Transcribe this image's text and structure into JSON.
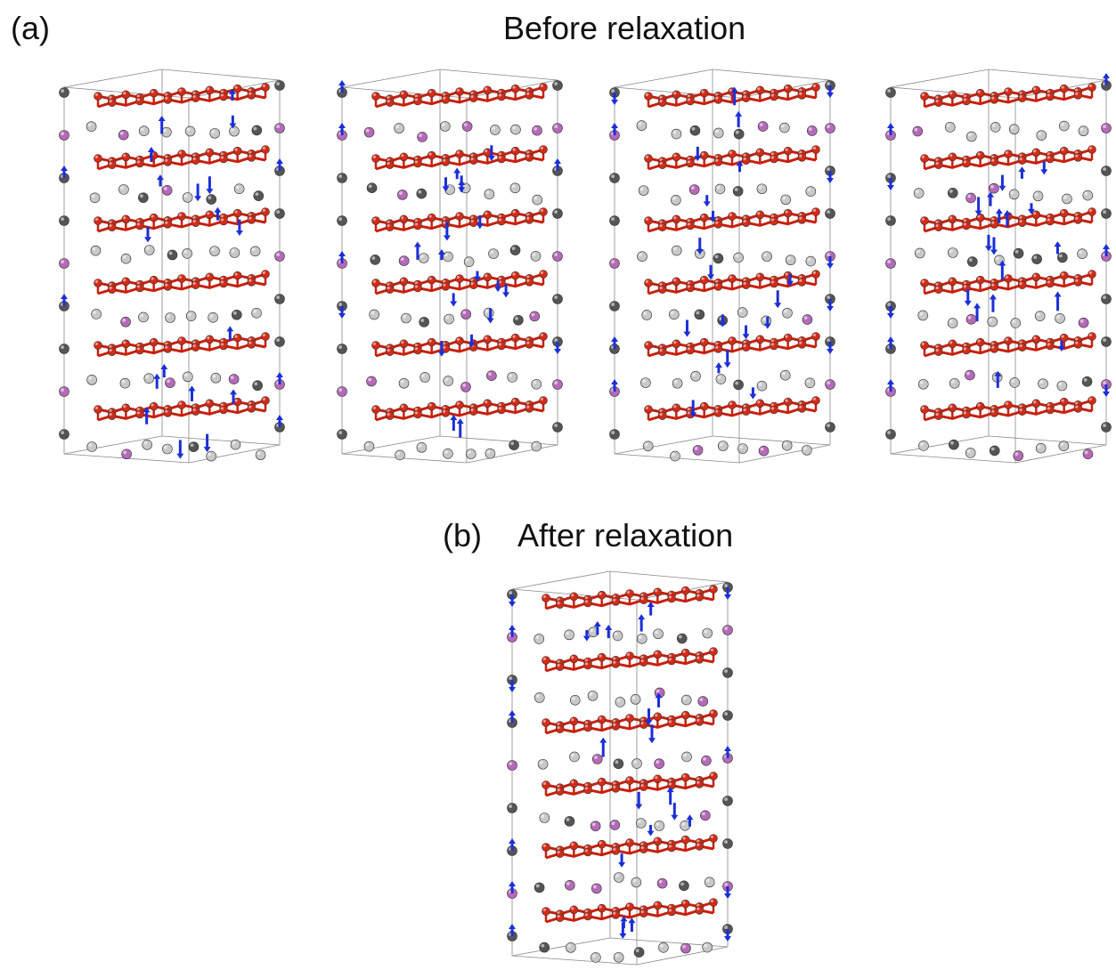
{
  "panel_a": {
    "label": "(a)",
    "title": "Before relaxation",
    "structure_count": 4
  },
  "panel_b": {
    "label": "(b)",
    "title": "After relaxation",
    "structure_count": 1
  },
  "atom_colors": {
    "layer_atom": "#d42a17",
    "layer_bond": "#c8200e",
    "dark_atom": "#555555",
    "light_atom": "#c8c8c8",
    "pink_atom": "#b56ab8",
    "spin_arrow": "#1c2fd6",
    "cell_edge": "#888888"
  }
}
